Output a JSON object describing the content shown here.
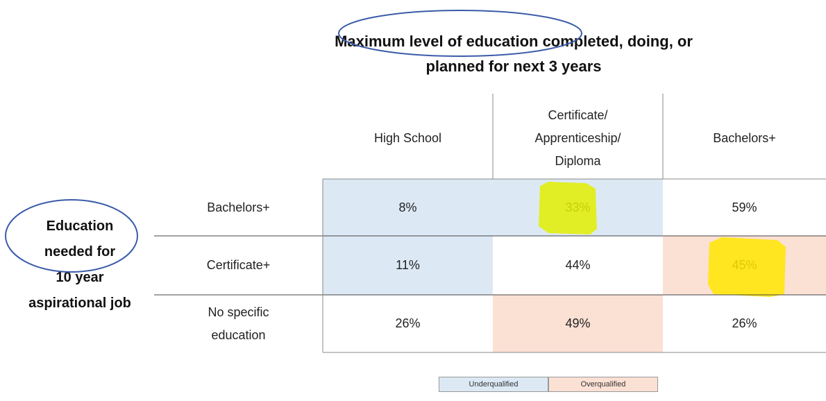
{
  "title": "Maximum level of education completed, doing, or\nplanned for next 3 years",
  "row_title": "Education\nneeded for\n10 year\naspirational job",
  "table": {
    "columns": [
      "High School",
      "Certificate/\nApprenticeship/\nDiploma",
      "Bachelors+"
    ],
    "rows": [
      {
        "label": "Bachelors+",
        "cells": [
          {
            "text": "8%",
            "color": "#dce9f5"
          },
          {
            "text": "33%",
            "color": "#dce9f5"
          },
          {
            "text": "59%",
            "color": "#ffffff"
          }
        ]
      },
      {
        "label": "Certificate+",
        "cells": [
          {
            "text": "11%",
            "color": "#dce9f5"
          },
          {
            "text": "44%",
            "color": "#ffffff"
          },
          {
            "text": "45%",
            "color": "#fbe0d4"
          }
        ]
      },
      {
        "label": "No specific\neducation",
        "cells": [
          {
            "text": "26%",
            "color": "#ffffff"
          },
          {
            "text": "49%",
            "color": "#fbe0d4"
          },
          {
            "text": "26%",
            "color": "#ffffff"
          }
        ]
      }
    ]
  },
  "legend": [
    {
      "name": "Underqualified",
      "color": "#dce9f5"
    },
    {
      "name": "Overqualified",
      "color": "#fbe0d4"
    }
  ]
}
